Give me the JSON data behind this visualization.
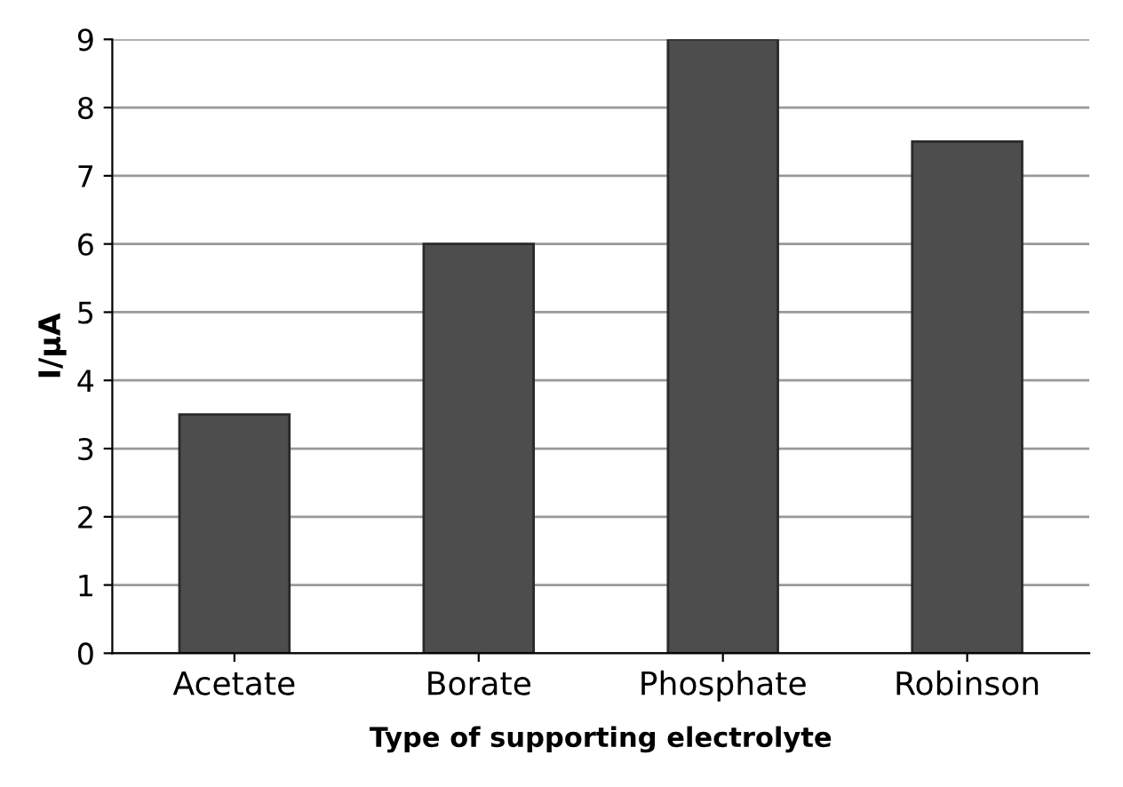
{
  "chart_data": {
    "type": "bar",
    "xlabel": "Type of supporting electrolyte",
    "ylabel": "I/μA",
    "categories": [
      "Acetate",
      "Borate",
      "Phosphate",
      "Robinson"
    ],
    "values": [
      3.5,
      6,
      9,
      7.5
    ],
    "color": "#4d4d4d",
    "ylim": [
      0,
      9
    ],
    "yticks": [
      0,
      1,
      2,
      3,
      4,
      5,
      6,
      7,
      8,
      9
    ],
    "grid": "y",
    "legend": false
  }
}
